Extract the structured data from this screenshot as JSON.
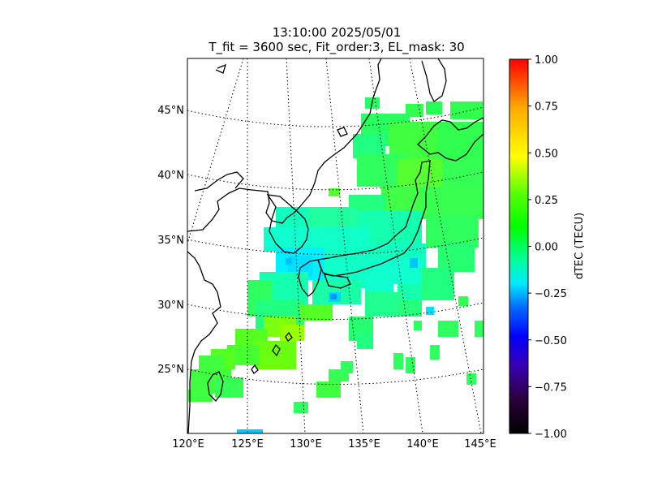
{
  "title": {
    "line1": "13:10:00 2025/05/01",
    "line2": "T_fit = 3600 sec, Fit_order:3, EL_mask: 30"
  },
  "map": {
    "lat_labels": [
      "45°N",
      "40°N",
      "35°N",
      "30°N",
      "25°N"
    ],
    "lon_labels": [
      "120°E",
      "125°E",
      "130°E",
      "135°E",
      "140°E",
      "145°E"
    ],
    "lon_range": [
      120,
      145
    ],
    "lat_range": [
      20,
      49
    ]
  },
  "colorbar": {
    "label": "dTEC (TECU)",
    "ticks": [
      "1.00",
      "0.75",
      "0.50",
      "0.25",
      "0.00",
      "−0.25",
      "−0.50",
      "−0.75",
      "−1.00"
    ],
    "range": [
      -1,
      1
    ],
    "colormap": [
      "#000000",
      "#2b003a",
      "#3a00b0",
      "#0000ff",
      "#0070ff",
      "#00e8ff",
      "#00ff90",
      "#00ff00",
      "#55ff00",
      "#ffff00",
      "#ffaa00",
      "#ff0000"
    ]
  },
  "colors": {
    "dominant_patch": "#20ff70",
    "ocean": "#ffffff",
    "coast": "#000000"
  }
}
